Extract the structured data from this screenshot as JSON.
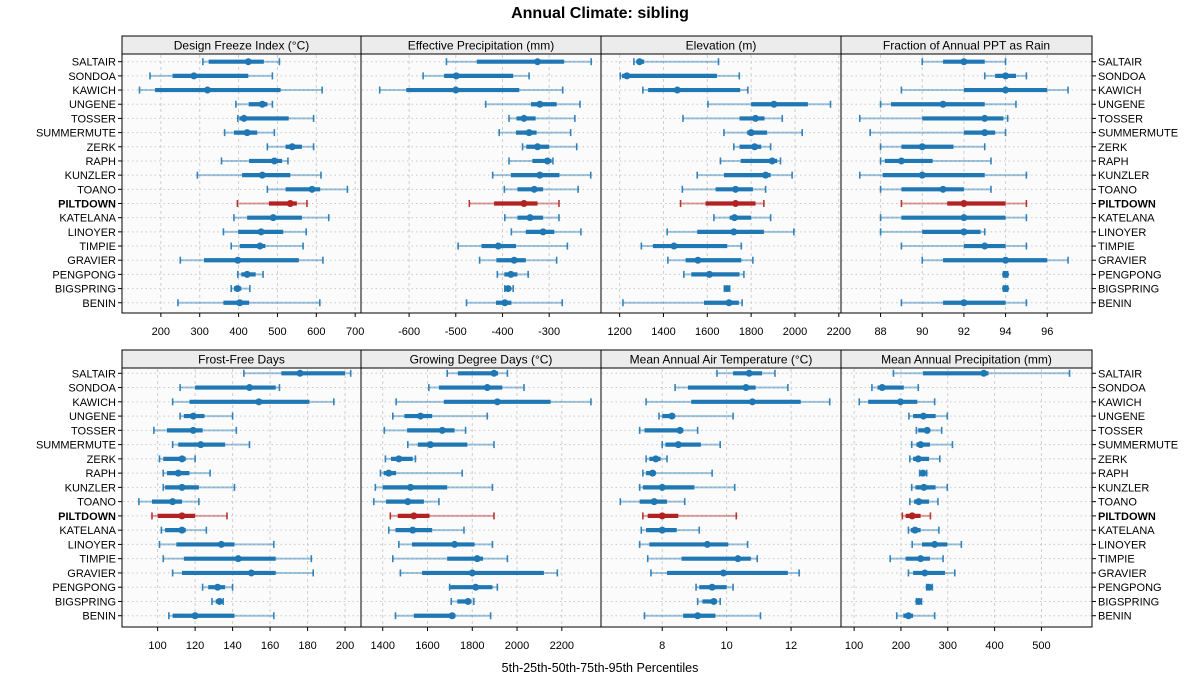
{
  "title": "Annual Climate: sibling",
  "caption": "5th-25th-50th-75th-95th Percentiles",
  "highlight_site": "PILTDOWN",
  "colors": {
    "series_blue": "#1f77b4",
    "highlight_red": "#b22222",
    "header_bg": "#ececec",
    "grid": "#cfcfcf",
    "row_guide": "#c9c9c9",
    "panel_border": "#000000"
  },
  "sites": [
    "SALTAIR",
    "SONDOA",
    "KAWICH",
    "UNGENE",
    "TOSSER",
    "SUMMERMUTE",
    "ZERK",
    "RAPH",
    "KUNZLER",
    "TOANO",
    "PILTDOWN",
    "KATELANA",
    "LINOYER",
    "TIMPIE",
    "GRAVIER",
    "PENGPONG",
    "BIGSPRING",
    "BENIN"
  ],
  "chart_data": {
    "type": "dot-whisker-percentiles",
    "layout": "2 rows x 4 columns of panels, shared site rows, site labels on both sides",
    "percentile_labels": [
      "5th",
      "25th",
      "50th",
      "75th",
      "95th"
    ],
    "panels": [
      {
        "slug": "design-freeze-index",
        "title": "Design Freeze Index (°C)",
        "ticks": [
          200,
          300,
          400,
          500,
          600,
          700
        ],
        "domain": [
          100,
          715
        ],
        "values": [
          [
            308,
            323,
            425,
            465,
            505
          ],
          [
            172,
            230,
            285,
            425,
            487
          ],
          [
            145,
            185,
            320,
            508,
            615
          ],
          [
            393,
            426,
            461,
            474,
            487
          ],
          [
            398,
            402,
            414,
            529,
            593
          ],
          [
            364,
            388,
            422,
            448,
            492
          ],
          [
            474,
            521,
            538,
            563,
            593
          ],
          [
            356,
            427,
            492,
            512,
            527
          ],
          [
            294,
            409,
            461,
            533,
            612
          ],
          [
            474,
            521,
            589,
            610,
            680
          ],
          [
            397,
            478,
            533,
            550,
            576
          ],
          [
            388,
            422,
            489,
            563,
            632
          ],
          [
            361,
            399,
            458,
            515,
            574
          ],
          [
            381,
            403,
            455,
            469,
            566
          ],
          [
            250,
            311,
            398,
            555,
            617
          ],
          [
            398,
            407,
            422,
            444,
            463
          ],
          [
            381,
            388,
            397,
            407,
            429
          ],
          [
            244,
            361,
            403,
            427,
            609
          ]
        ]
      },
      {
        "slug": "effective-precipitation",
        "title": "Effective Precipitation (mm)",
        "ticks": [
          -600,
          -500,
          -400,
          -300
        ],
        "domain": [
          -703,
          -189
        ],
        "values": [
          [
            -520,
            -455,
            -325,
            -268,
            -210
          ],
          [
            -570,
            -525,
            -499,
            -377,
            -343
          ],
          [
            -663,
            -606,
            -500,
            -364,
            -271
          ],
          [
            -436,
            -339,
            -320,
            -284,
            -234
          ],
          [
            -386,
            -370,
            -354,
            -329,
            -245
          ],
          [
            -407,
            -371,
            -343,
            -327,
            -254
          ],
          [
            -357,
            -349,
            -325,
            -300,
            -241
          ],
          [
            -386,
            -336,
            -304,
            -295,
            -292
          ],
          [
            -421,
            -382,
            -320,
            -278,
            -211
          ],
          [
            -396,
            -368,
            -332,
            -313,
            -238
          ],
          [
            -471,
            -418,
            -354,
            -325,
            -279
          ],
          [
            -395,
            -368,
            -341,
            -313,
            -279
          ],
          [
            -381,
            -350,
            -313,
            -289,
            -232
          ],
          [
            -495,
            -445,
            -409,
            -371,
            -261
          ],
          [
            -449,
            -413,
            -375,
            -350,
            -284
          ],
          [
            -411,
            -396,
            -382,
            -368,
            -345
          ],
          [
            -395,
            -393,
            -388,
            -382,
            -377
          ],
          [
            -477,
            -414,
            -395,
            -381,
            -272
          ]
        ]
      },
      {
        "slug": "elevation",
        "title": "Elevation (m)",
        "ticks": [
          1200,
          1400,
          1600,
          1800,
          2000,
          2200
        ],
        "domain": [
          1115,
          2210
        ],
        "values": [
          [
            1265,
            1278,
            1291,
            1312,
            1651
          ],
          [
            1203,
            1211,
            1233,
            1644,
            1746
          ],
          [
            1306,
            1330,
            1463,
            1750,
            1785
          ],
          [
            1603,
            1800,
            1904,
            2059,
            2162
          ],
          [
            1489,
            1747,
            1820,
            1861,
            1942
          ],
          [
            1676,
            1782,
            1800,
            1873,
            2033
          ],
          [
            1721,
            1747,
            1816,
            1846,
            1889
          ],
          [
            1660,
            1752,
            1896,
            1919,
            1934
          ],
          [
            1554,
            1676,
            1866,
            1889,
            1987
          ],
          [
            1486,
            1638,
            1729,
            1808,
            1866
          ],
          [
            1478,
            1592,
            1729,
            1820,
            1858
          ],
          [
            1630,
            1702,
            1724,
            1800,
            1889
          ],
          [
            1417,
            1554,
            1721,
            1858,
            1995
          ],
          [
            1299,
            1352,
            1448,
            1691,
            1755
          ],
          [
            1420,
            1501,
            1557,
            1755,
            1808
          ],
          [
            1493,
            1527,
            1610,
            1747,
            1767
          ],
          [
            1678,
            1684,
            1690,
            1696,
            1702
          ],
          [
            1215,
            1585,
            1699,
            1744,
            1759
          ]
        ]
      },
      {
        "slug": "fraction-ppt-as-rain",
        "title": "Fraction of Annual PPT as Rain",
        "ticks": [
          88,
          90,
          92,
          94,
          96
        ],
        "domain": [
          86.1,
          98.15
        ],
        "values": [
          [
            90,
            91,
            92,
            93,
            94
          ],
          [
            93,
            93.5,
            94,
            94.5,
            95
          ],
          [
            89,
            92,
            94,
            96,
            97
          ],
          [
            88,
            88.5,
            91,
            93,
            94.5
          ],
          [
            87,
            90,
            93,
            93.9,
            94.1
          ],
          [
            87.5,
            92,
            93,
            93.5,
            94
          ],
          [
            88,
            89,
            90,
            91.5,
            93
          ],
          [
            88,
            88.2,
            89,
            90.5,
            93.3
          ],
          [
            87,
            88.1,
            90,
            93,
            95
          ],
          [
            88,
            89,
            91,
            92,
            93.3
          ],
          [
            89,
            91.2,
            92,
            94,
            95
          ],
          [
            88,
            89,
            92,
            94,
            95
          ],
          [
            88,
            90,
            92,
            92.8,
            93
          ],
          [
            89,
            92,
            93,
            94,
            95
          ],
          [
            90,
            91,
            94,
            96,
            97
          ],
          [
            93.9,
            93.96,
            94,
            94.05,
            94.1
          ],
          [
            93.9,
            93.95,
            94,
            94.05,
            94.1
          ],
          [
            89,
            91,
            92,
            94,
            95
          ]
        ]
      },
      {
        "slug": "frost-free-days",
        "title": "Frost-Free Days",
        "ticks": [
          100,
          120,
          140,
          160,
          180,
          200
        ],
        "domain": [
          81,
          208.5
        ],
        "values": [
          [
            146,
            166,
            176,
            200,
            203
          ],
          [
            112,
            120,
            149,
            163,
            165
          ],
          [
            108,
            117,
            154,
            181,
            194
          ],
          [
            112,
            114,
            119,
            125,
            140
          ],
          [
            98,
            105,
            119,
            124,
            142
          ],
          [
            108,
            111,
            123,
            136,
            149
          ],
          [
            101,
            103,
            113,
            115,
            120
          ],
          [
            103,
            105,
            111,
            117,
            128
          ],
          [
            103,
            104,
            113,
            122,
            141
          ],
          [
            90,
            97,
            108,
            113,
            122
          ],
          [
            97,
            100,
            113,
            120,
            137
          ],
          [
            102,
            104,
            113,
            115,
            126
          ],
          [
            101,
            110,
            134,
            141,
            162
          ],
          [
            103,
            114,
            143,
            163,
            182
          ],
          [
            108,
            113,
            150,
            163,
            183
          ],
          [
            124,
            127,
            132,
            136,
            140
          ],
          [
            129,
            131,
            133,
            134,
            135
          ],
          [
            106,
            108,
            120,
            141,
            162
          ]
        ]
      },
      {
        "slug": "growing-degree-days",
        "title": "Growing Degree Days (°C)",
        "ticks": [
          1400,
          1600,
          1800,
          2000,
          2200
        ],
        "domain": [
          1303,
          2375
        ],
        "values": [
          [
            1688,
            1736,
            1897,
            1915,
            1957
          ],
          [
            1606,
            1651,
            1867,
            1934,
            2031
          ],
          [
            1460,
            1673,
            1912,
            2150,
            2330
          ],
          [
            1445,
            1497,
            1569,
            1621,
            1867
          ],
          [
            1407,
            1509,
            1666,
            1721,
            1770
          ],
          [
            1512,
            1557,
            1613,
            1778,
            1897
          ],
          [
            1412,
            1437,
            1472,
            1534,
            1546
          ],
          [
            1390,
            1404,
            1427,
            1460,
            1755
          ],
          [
            1367,
            1400,
            1524,
            1688,
            1890
          ],
          [
            1360,
            1415,
            1512,
            1584,
            1651
          ],
          [
            1434,
            1467,
            1539,
            1609,
            1897
          ],
          [
            1427,
            1457,
            1534,
            1621,
            1763
          ],
          [
            1472,
            1531,
            1721,
            1810,
            1890
          ],
          [
            1445,
            1688,
            1822,
            1848,
            1957
          ],
          [
            1479,
            1576,
            1800,
            2120,
            2180
          ],
          [
            1699,
            1703,
            1815,
            1890,
            1912
          ],
          [
            1706,
            1733,
            1781,
            1796,
            1807
          ],
          [
            1457,
            1539,
            1710,
            1725,
            1882
          ]
        ]
      },
      {
        "slug": "mean-annual-air-temperature",
        "title": "Mean Annual Air Temperature (°C)",
        "ticks": [
          8,
          10,
          12
        ],
        "domain": [
          6.1,
          13.55
        ],
        "values": [
          [
            9.7,
            10.2,
            10.7,
            11.1,
            11.5
          ],
          [
            8.4,
            8.8,
            10.6,
            10.9,
            11.9
          ],
          [
            7.5,
            8.9,
            10.8,
            12.3,
            13.2
          ],
          [
            7.9,
            8.0,
            8.3,
            8.4,
            10.2
          ],
          [
            7.3,
            7.45,
            8.55,
            8.65,
            9.1
          ],
          [
            8.0,
            8.1,
            8.5,
            9.2,
            9.8
          ],
          [
            7.5,
            7.6,
            7.8,
            7.95,
            8.15
          ],
          [
            7.4,
            7.5,
            7.7,
            7.8,
            9.55
          ],
          [
            7.3,
            7.4,
            8.0,
            9.0,
            10.25
          ],
          [
            6.7,
            7.3,
            7.75,
            8.15,
            8.7
          ],
          [
            7.4,
            7.55,
            8.0,
            8.5,
            10.3
          ],
          [
            7.35,
            7.5,
            8.0,
            8.45,
            9.15
          ],
          [
            7.3,
            7.6,
            9.4,
            10.05,
            10.65
          ],
          [
            7.55,
            8.6,
            10.35,
            10.75,
            10.95
          ],
          [
            7.65,
            8.15,
            9.9,
            11.9,
            12.25
          ],
          [
            9.05,
            9.15,
            9.55,
            10.0,
            10.2
          ],
          [
            9.1,
            9.25,
            9.6,
            9.7,
            9.8
          ],
          [
            7.45,
            8.65,
            9.1,
            9.65,
            11.05
          ]
        ]
      },
      {
        "slug": "mean-annual-precipitation",
        "title": "Mean Annual Precipitation (mm)",
        "ticks": [
          100,
          200,
          300,
          400,
          500
        ],
        "domain": [
          72,
          608
        ],
        "values": [
          [
            184,
            247,
            377,
            387,
            560
          ],
          [
            138,
            150,
            160,
            206,
            237
          ],
          [
            111,
            130,
            199,
            235,
            272
          ],
          [
            217,
            226,
            248,
            274,
            299
          ],
          [
            233,
            237,
            256,
            262,
            287
          ],
          [
            223,
            233,
            242,
            262,
            310
          ],
          [
            219,
            226,
            237,
            260,
            283
          ],
          [
            240,
            242,
            247,
            252,
            255
          ],
          [
            223,
            231,
            249,
            274,
            299
          ],
          [
            219,
            228,
            238,
            260,
            279
          ],
          [
            203,
            210,
            224,
            242,
            263
          ],
          [
            216,
            221,
            230,
            242,
            281
          ],
          [
            224,
            245,
            272,
            299,
            329
          ],
          [
            177,
            210,
            242,
            262,
            290
          ],
          [
            216,
            226,
            251,
            294,
            315
          ],
          [
            255,
            257,
            260,
            264,
            267
          ],
          [
            233,
            235,
            238,
            241,
            244
          ],
          [
            191,
            205,
            216,
            226,
            272
          ]
        ]
      }
    ]
  }
}
